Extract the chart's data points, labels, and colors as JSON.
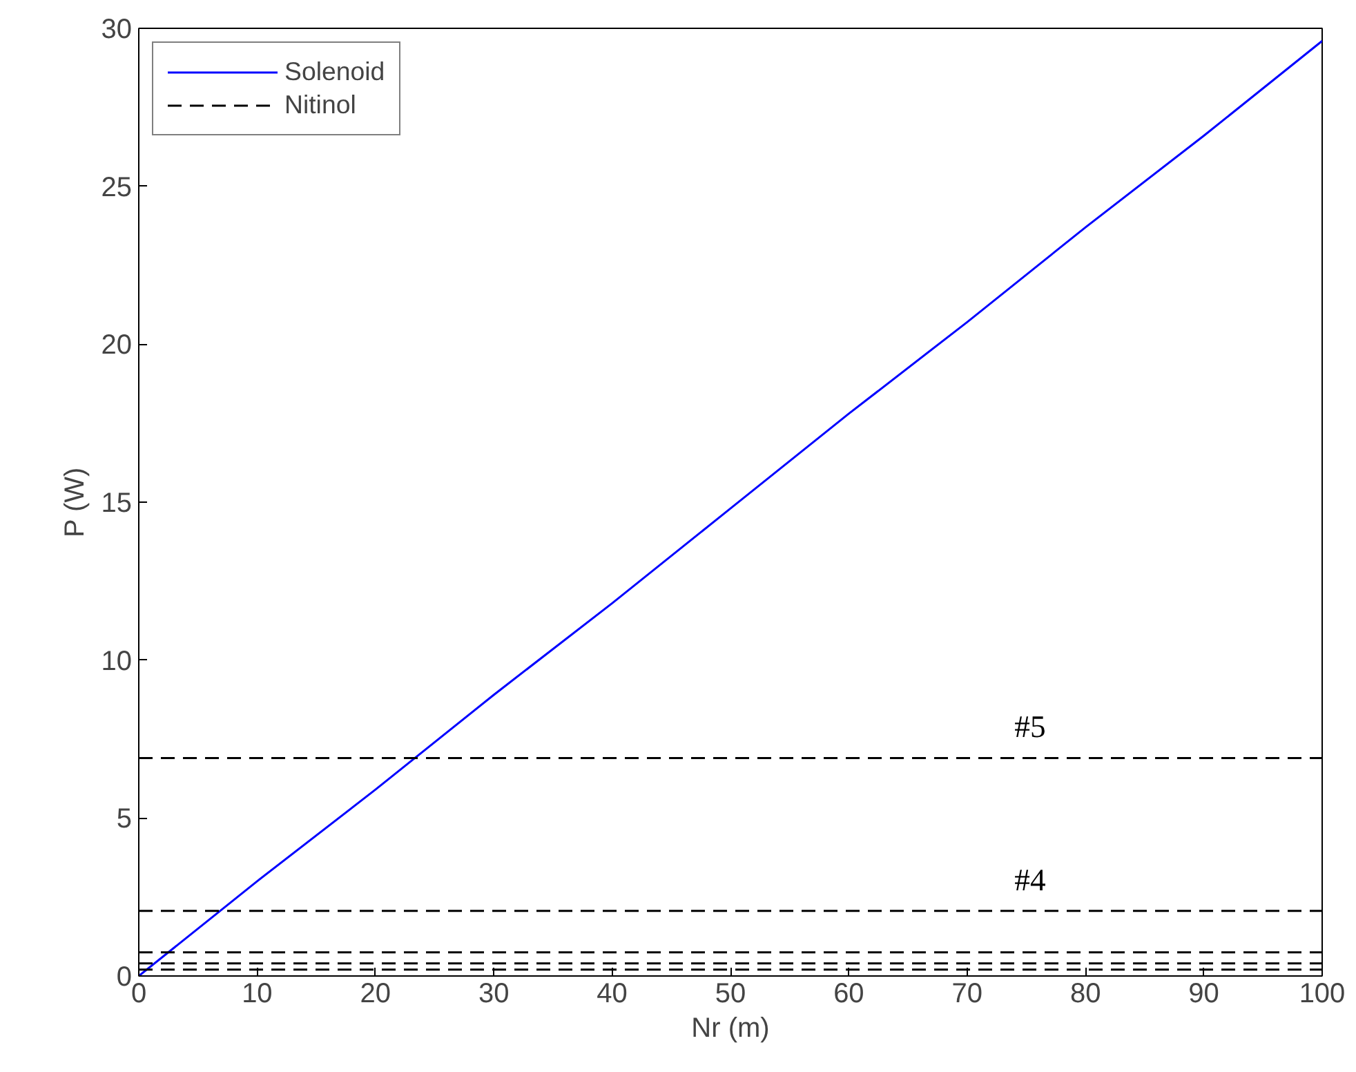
{
  "chart_data": {
    "type": "line",
    "xlabel": "Nr (m)",
    "ylabel": "P (W)",
    "xlim": [
      0,
      100
    ],
    "ylim": [
      0,
      30
    ],
    "xticks": [
      0,
      10,
      20,
      30,
      40,
      50,
      60,
      70,
      80,
      90,
      100
    ],
    "yticks": [
      0,
      5,
      10,
      15,
      20,
      25,
      30
    ],
    "grid": false,
    "legend": "top left",
    "series": [
      {
        "name": "Solenoid",
        "color": "#0000ff",
        "line_style": "solid",
        "x": [
          0,
          10,
          20,
          30,
          40,
          50,
          60,
          70,
          80,
          90,
          100
        ],
        "values": [
          0,
          3.0,
          5.9,
          8.9,
          11.8,
          14.8,
          17.8,
          20.7,
          23.7,
          26.6,
          29.6
        ]
      },
      {
        "name": "Nitinol",
        "color": "#000000",
        "line_style": "dashed",
        "x": [
          0,
          100
        ],
        "values": [
          6.9,
          6.9
        ]
      },
      {
        "color": "#000000",
        "line_style": "dashed",
        "x": [
          0,
          100
        ],
        "values": [
          2.06,
          2.06
        ]
      },
      {
        "color": "#000000",
        "line_style": "dashed",
        "x": [
          0,
          100
        ],
        "values": [
          0.75,
          0.75
        ]
      },
      {
        "color": "#000000",
        "line_style": "dashed",
        "x": [
          0,
          100
        ],
        "values": [
          0.4,
          0.4
        ]
      },
      {
        "color": "#000000",
        "line_style": "dashed",
        "x": [
          0,
          100
        ],
        "values": [
          0.2,
          0.2
        ]
      }
    ],
    "annotations": [
      {
        "text": "#5",
        "x": 74,
        "y": 6.9
      },
      {
        "text": "#4",
        "x": 74,
        "y": 2.06
      }
    ]
  }
}
